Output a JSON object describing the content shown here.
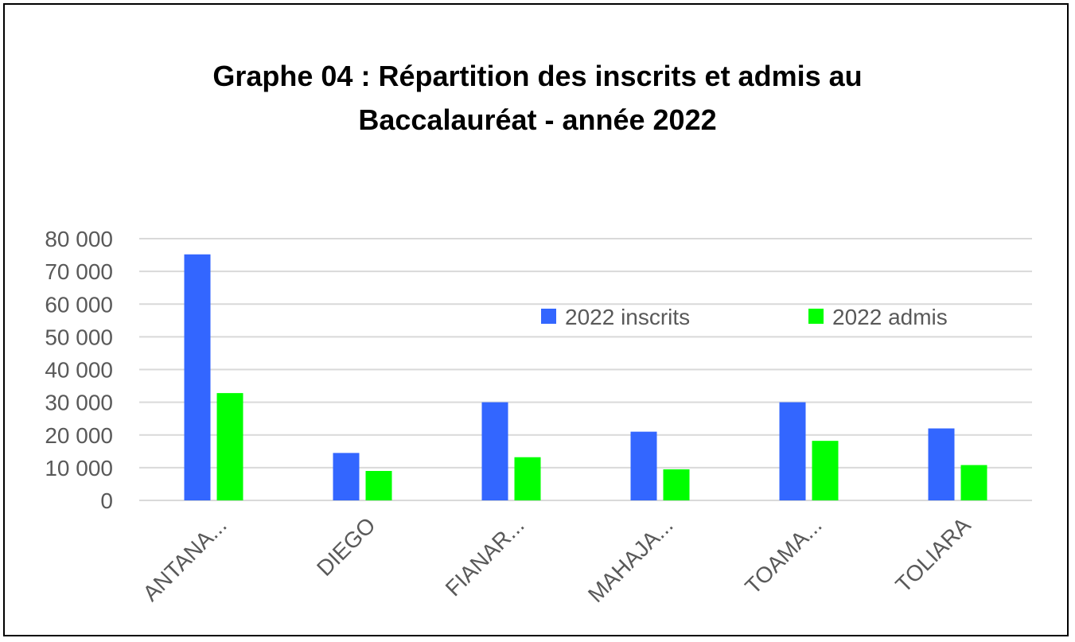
{
  "chart_data": {
    "type": "bar",
    "title_line1": "Graphe 04 : Répartition des inscrits et admis au",
    "title_line2": "Baccalauréat - année 2022",
    "categories": [
      "ANTANA...",
      "DIEGO",
      "FIANAR...",
      "MAHAJA...",
      "TOAMA...",
      "TOLIARA"
    ],
    "series": [
      {
        "name": "2022 inscrits",
        "color": "#3366FF",
        "values": [
          75200,
          14500,
          30000,
          21000,
          30000,
          22000
        ]
      },
      {
        "name": "2022 admis",
        "color": "#00FF00",
        "values": [
          32800,
          9000,
          13200,
          9500,
          18200,
          10800
        ]
      }
    ],
    "yticks": [
      "0",
      "10 000",
      "20 000",
      "30 000",
      "40 000",
      "50 000",
      "60 000",
      "70 000",
      "80 000"
    ],
    "ylim": [
      0,
      80000
    ],
    "grid": true,
    "legend_position": "top-right",
    "xlabel": "",
    "ylabel": ""
  }
}
